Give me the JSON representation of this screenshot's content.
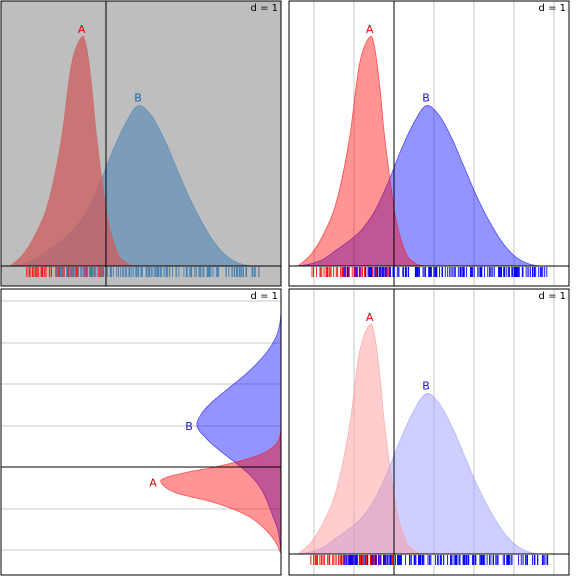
{
  "figure": {
    "panel_label": "d = 1",
    "background_color": "#ffffff"
  },
  "chart_data": [
    {
      "type": "area",
      "panel": "top-left",
      "orientation": "vertical-density",
      "label": "d = 1",
      "background": "#bebebe",
      "grid": false,
      "rug": true,
      "vertical_reference_line": true,
      "density_min": 0,
      "density_max": 1,
      "series": [
        {
          "name": "A",
          "color": "#cd5c5c",
          "label_color": "#e00000",
          "fill_opacity": 0.75,
          "x": [
            0.0,
            0.05,
            0.1,
            0.15,
            0.2,
            0.24,
            0.28,
            0.3,
            0.32,
            0.34,
            0.38,
            0.42,
            0.46,
            0.5
          ],
          "density": [
            0.0,
            0.05,
            0.14,
            0.28,
            0.55,
            0.88,
            1.0,
            0.95,
            0.78,
            0.55,
            0.22,
            0.06,
            0.01,
            0.0
          ]
        },
        {
          "name": "B",
          "color": "#4682b4",
          "label_color": "#1a5fb4",
          "fill_opacity": 0.55,
          "x": [
            0.0,
            0.05,
            0.1,
            0.15,
            0.2,
            0.25,
            0.3,
            0.35,
            0.4,
            0.45,
            0.5,
            0.55,
            0.6,
            0.65,
            0.7,
            0.75,
            0.8,
            0.85,
            0.9,
            0.95,
            1.0
          ],
          "density": [
            0.0,
            0.01,
            0.03,
            0.07,
            0.11,
            0.16,
            0.24,
            0.36,
            0.5,
            0.62,
            0.7,
            0.66,
            0.56,
            0.43,
            0.3,
            0.19,
            0.1,
            0.04,
            0.01,
            0.0,
            0.0
          ]
        }
      ]
    },
    {
      "type": "area",
      "panel": "top-right",
      "orientation": "vertical-density",
      "label": "d = 1",
      "background": "#ffffff",
      "grid": true,
      "rug": true,
      "vertical_reference_line": true,
      "series": [
        {
          "name": "A",
          "color": "#ff0000",
          "label_color": "#e00000",
          "fill_opacity": 0.42
        },
        {
          "name": "B",
          "color": "#0000ff",
          "label_color": "#1515c0",
          "fill_opacity": 0.42
        }
      ]
    },
    {
      "type": "area",
      "panel": "bottom-left",
      "orientation": "horizontal-density",
      "label": "d = 1",
      "background": "#ffffff",
      "grid": true,
      "rug": false,
      "horizontal_reference_line": true,
      "series": [
        {
          "name": "A",
          "color": "#ff0000",
          "label_color": "#e00000",
          "fill_opacity": 0.42
        },
        {
          "name": "B",
          "color": "#0000ff",
          "label_color": "#1515c0",
          "fill_opacity": 0.42
        }
      ]
    },
    {
      "type": "area",
      "panel": "bottom-right",
      "orientation": "vertical-density",
      "label": "d = 1",
      "background": "#ffffff",
      "grid": true,
      "rug": true,
      "vertical_reference_line": true,
      "series": [
        {
          "name": "A",
          "color": "#ff9090",
          "label_color": "#e00000",
          "fill_opacity": 0.45
        },
        {
          "name": "B",
          "color": "#9595ff",
          "label_color": "#1515c0",
          "fill_opacity": 0.45
        }
      ]
    }
  ]
}
